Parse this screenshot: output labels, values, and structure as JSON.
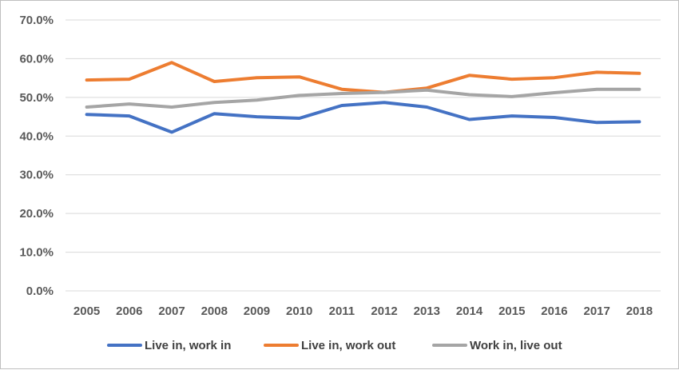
{
  "chart_data": {
    "type": "line",
    "title": "",
    "xlabel": "",
    "ylabel": "",
    "x": [
      "2005",
      "2006",
      "2007",
      "2008",
      "2009",
      "2010",
      "2011",
      "2012",
      "2013",
      "2014",
      "2015",
      "2016",
      "2017",
      "2018"
    ],
    "ylim": [
      0,
      70
    ],
    "y_ticks": [
      "0.0%",
      "10.0%",
      "20.0%",
      "30.0%",
      "40.0%",
      "50.0%",
      "60.0%",
      "70.0%"
    ],
    "grid": true,
    "legend_position": "bottom",
    "series": [
      {
        "name": "Live in, work in",
        "color": "#4472C4",
        "values": [
          45.6,
          45.2,
          41.0,
          45.8,
          45.0,
          44.6,
          47.9,
          48.7,
          47.5,
          44.3,
          45.2,
          44.8,
          43.5,
          43.7
        ]
      },
      {
        "name": "Live in, work out",
        "color": "#ED7D31",
        "values": [
          54.5,
          54.7,
          59.0,
          54.1,
          55.1,
          55.3,
          52.1,
          51.3,
          52.4,
          55.7,
          54.7,
          55.1,
          56.5,
          56.2
        ]
      },
      {
        "name": "Work in, live out",
        "color": "#A5A5A5",
        "values": [
          47.5,
          48.3,
          47.5,
          48.7,
          49.3,
          50.5,
          51.0,
          51.3,
          51.9,
          50.7,
          50.2,
          51.2,
          52.1,
          52.1
        ]
      }
    ]
  }
}
